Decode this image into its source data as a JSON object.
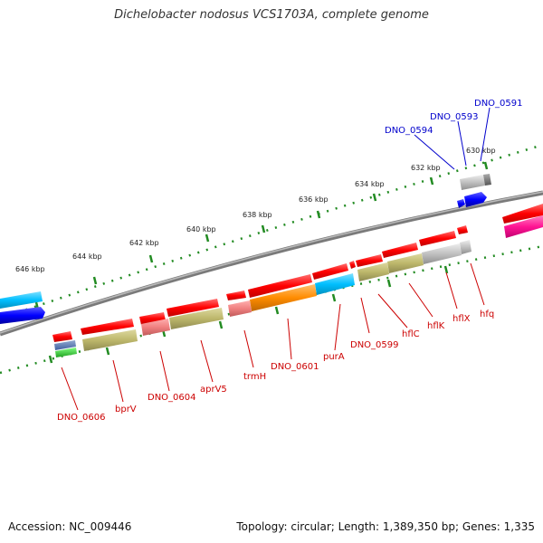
{
  "header": {
    "title": "Dichelobacter nodosus VCS1703A, complete genome"
  },
  "footer": {
    "accession": "Accession: NC_009446",
    "summary": "Topology: circular; Length: 1,389,350 bp; Genes: 1,335"
  },
  "scale_labels": [
    "630 kbp",
    "632 kbp",
    "634 kbp",
    "636 kbp",
    "638 kbp",
    "640 kbp",
    "642 kbp",
    "644 kbp",
    "646 kbp"
  ],
  "gene_labels": {
    "outer": [
      "DNO_0591",
      "DNO_0593",
      "DNO_0594"
    ],
    "inner": [
      "hfq",
      "hflX",
      "hflK",
      "hflC",
      "DNO_0599",
      "purA",
      "DNO_0601",
      "trmH",
      "aprV5",
      "DNO_0604",
      "bprV",
      "DNO_0606"
    ]
  },
  "colors": {
    "forward_label": "#0000cc",
    "reverse_label": "#cc0000",
    "backbone": "#888888",
    "scale_dots": "#228b22",
    "cds_reverse": "#ff0000",
    "cds_forward": "#0000ff",
    "cog_olive": "#bdb76b",
    "cog_orange": "#ff8c00",
    "cog_cyan": "#00bfff",
    "cog_salmon": "#f08080",
    "cog_gray": "#c0c0c0",
    "cog_pink": "#ff1493"
  }
}
